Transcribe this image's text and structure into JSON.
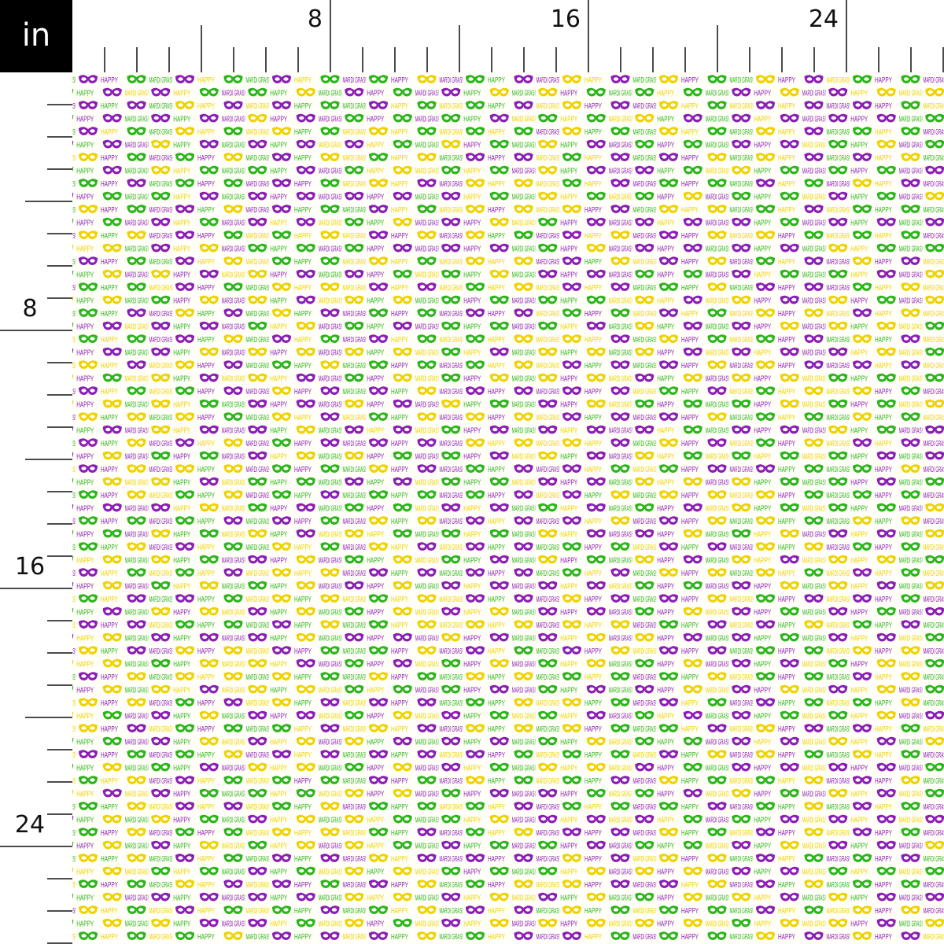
{
  "unit_label": "in",
  "ruler": {
    "top": [
      8,
      16,
      24
    ],
    "left": [
      8,
      16,
      24
    ]
  },
  "pattern": {
    "words": [
      "HAPPY",
      "MARDI GRAS!"
    ]
  }
}
